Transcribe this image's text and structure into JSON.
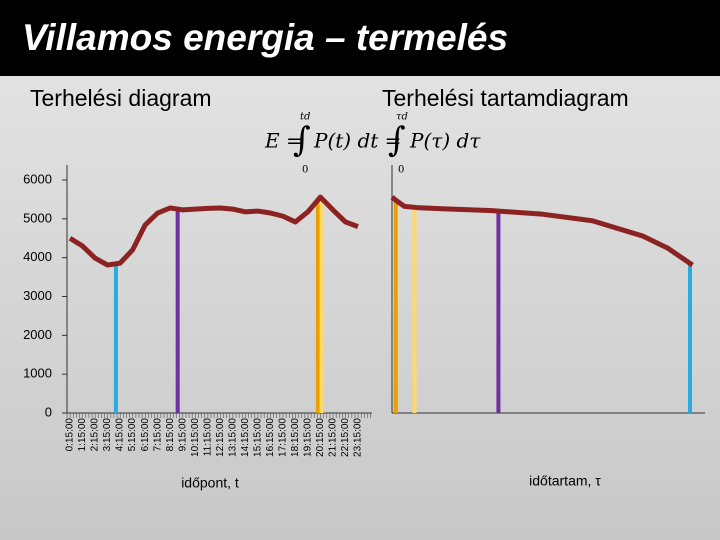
{
  "header": {
    "title": "Villamos energia – termelés"
  },
  "formula": {
    "integral": "∫",
    "parts": [
      "E =",
      "P(t) dt =",
      "P(τ) dτ"
    ],
    "upper": [
      "td",
      "τd"
    ],
    "lower": "0"
  },
  "chart_data": [
    {
      "type": "line",
      "title": "Terhelési diagram",
      "xlabel": "időpont, t",
      "color": "#8b2323",
      "categories": [
        "0:15:00",
        "1:15:00",
        "2:15:00",
        "3:15:00",
        "4:15:00",
        "5:15:00",
        "6:15:00",
        "7:15:00",
        "8:15:00",
        "9:15:00",
        "10:15:00",
        "11:15:00",
        "12:15:00",
        "13:15:00",
        "14:15:00",
        "15:15:00",
        "16:15:00",
        "17:15:00",
        "18:15:00",
        "19:15:00",
        "20:15:00",
        "21:15:00",
        "22:15:00",
        "23:15:00"
      ],
      "values": [
        4500,
        4300,
        3990,
        3810,
        3860,
        4200,
        4840,
        5150,
        5280,
        5230,
        5250,
        5270,
        5280,
        5250,
        5180,
        5200,
        5150,
        5070,
        4920,
        5180,
        5560,
        5230,
        4920,
        4800
      ],
      "ylim": [
        0,
        6000
      ],
      "yticks": [
        0,
        1000,
        2000,
        3000,
        4000,
        5000,
        6000
      ],
      "highlights": [
        {
          "x": 3.67,
          "value": 3800,
          "color": "#29abe2"
        },
        {
          "x": 8.6,
          "value": 5230,
          "color": "#7030a0"
        },
        {
          "x": 19.8,
          "value": 5500,
          "color": "#e8a000"
        },
        {
          "x": 20.1,
          "value": 5450,
          "color": "#ffd966"
        }
      ]
    },
    {
      "type": "duration",
      "title": "Terhelési tartamdiagram",
      "xlabel": "időtartam, τ",
      "color": "#8b2323",
      "x": [
        0,
        0.3,
        1,
        2,
        4,
        8,
        12,
        16,
        20,
        22,
        24
      ],
      "values": [
        5560,
        5480,
        5320,
        5290,
        5260,
        5210,
        5120,
        4950,
        4560,
        4250,
        3810
      ],
      "xlim": [
        0,
        25
      ],
      "ylim": [
        0,
        6000
      ],
      "highlights": [
        {
          "x": 0.3,
          "value": 5480,
          "color": "#e8a000"
        },
        {
          "x": 1.8,
          "value": 5300,
          "color": "#ffd966"
        },
        {
          "x": 8.5,
          "value": 5200,
          "color": "#7030a0"
        },
        {
          "x": 23.8,
          "value": 3830,
          "color": "#29abe2"
        }
      ]
    }
  ]
}
